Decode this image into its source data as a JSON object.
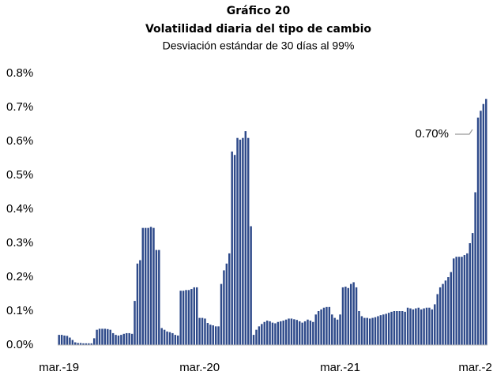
{
  "chart_data": {
    "type": "bar",
    "title": "Gráfico 20",
    "subtitle": "Volatilidad diaria del tipo de cambio",
    "description": "Desviación estándar de 30 días al 99%",
    "annotation": "0.70%",
    "color": "#2e4a8a",
    "ylim": [
      0,
      0.8
    ],
    "yticks": [
      {
        "value": 0,
        "label": "0.0%"
      },
      {
        "value": 0.1,
        "label": "0.1%"
      },
      {
        "value": 0.2,
        "label": "0.2%"
      },
      {
        "value": 0.3,
        "label": "0.3%"
      },
      {
        "value": 0.4,
        "label": "0.4%"
      },
      {
        "value": 0.5,
        "label": "0.5%"
      },
      {
        "value": 0.6,
        "label": "0.6%"
      },
      {
        "value": 0.7,
        "label": "0.7%"
      },
      {
        "value": 0.8,
        "label": "0.8%"
      }
    ],
    "categories": [
      "mar.-19",
      null,
      null,
      null,
      null,
      null,
      null,
      null,
      null,
      null,
      null,
      null,
      null,
      null,
      null,
      null,
      null,
      null,
      null,
      null,
      null,
      null,
      null,
      null,
      null,
      null,
      null,
      null,
      null,
      null,
      null,
      null,
      null,
      null,
      null,
      null,
      null,
      null,
      null,
      null,
      null,
      null,
      null,
      null,
      null,
      null,
      null,
      null,
      null,
      null,
      null,
      null,
      "mar.-20",
      null,
      null,
      null,
      null,
      null,
      null,
      null,
      null,
      null,
      null,
      null,
      null,
      null,
      null,
      null,
      null,
      null,
      null,
      null,
      null,
      null,
      null,
      null,
      null,
      null,
      null,
      null,
      null,
      null,
      null,
      null,
      null,
      null,
      null,
      null,
      null,
      null,
      null,
      null,
      null,
      null,
      null,
      null,
      null,
      null,
      null,
      null,
      null,
      null,
      null,
      null,
      "mar.-21",
      null,
      null,
      null,
      null,
      null,
      null,
      null,
      null,
      null,
      null,
      null,
      null,
      null,
      null,
      null,
      null,
      null,
      null,
      null,
      null,
      null,
      null,
      null,
      null,
      null,
      null,
      null,
      null,
      null,
      null,
      null,
      null,
      null,
      null,
      null,
      null,
      null,
      null,
      null,
      null,
      null,
      null,
      null,
      null,
      null,
      null,
      null,
      null,
      null,
      "mar.-2",
      null,
      null,
      null,
      null
    ],
    "values": [
      0.03,
      0.03,
      0.028,
      0.027,
      0.022,
      0.015,
      0.008,
      0.006,
      0.006,
      0.005,
      0.005,
      0.005,
      0.005,
      0.02,
      0.045,
      0.048,
      0.048,
      0.048,
      0.047,
      0.045,
      0.035,
      0.03,
      0.028,
      0.03,
      0.033,
      0.035,
      0.035,
      0.033,
      0.13,
      0.24,
      0.25,
      0.345,
      0.345,
      0.345,
      0.348,
      0.345,
      0.28,
      0.28,
      0.05,
      0.045,
      0.04,
      0.038,
      0.035,
      0.03,
      0.028,
      0.16,
      0.16,
      0.162,
      0.162,
      0.165,
      0.17,
      0.17,
      0.08,
      0.08,
      0.078,
      0.065,
      0.06,
      0.058,
      0.055,
      0.055,
      0.18,
      0.22,
      0.24,
      0.27,
      0.57,
      0.56,
      0.61,
      0.605,
      0.61,
      0.63,
      0.61,
      0.35,
      0.03,
      0.045,
      0.055,
      0.062,
      0.068,
      0.072,
      0.07,
      0.066,
      0.064,
      0.068,
      0.07,
      0.072,
      0.075,
      0.078,
      0.078,
      0.076,
      0.074,
      0.07,
      0.066,
      0.07,
      0.075,
      0.072,
      0.068,
      0.09,
      0.1,
      0.105,
      0.11,
      0.112,
      0.112,
      0.09,
      0.08,
      0.075,
      0.09,
      0.17,
      0.172,
      0.168,
      0.18,
      0.185,
      0.17,
      0.1,
      0.085,
      0.08,
      0.08,
      0.078,
      0.08,
      0.082,
      0.085,
      0.088,
      0.09,
      0.092,
      0.095,
      0.098,
      0.1,
      0.1,
      0.1,
      0.1,
      0.098,
      0.11,
      0.108,
      0.105,
      0.108,
      0.11,
      0.105,
      0.108,
      0.11,
      0.11,
      0.105,
      0.12,
      0.15,
      0.17,
      0.18,
      0.19,
      0.2,
      0.215,
      0.255,
      0.26,
      0.26,
      0.26,
      0.265,
      0.27,
      0.3,
      0.33,
      0.45,
      0.67,
      0.69,
      0.71,
      0.725
    ]
  }
}
